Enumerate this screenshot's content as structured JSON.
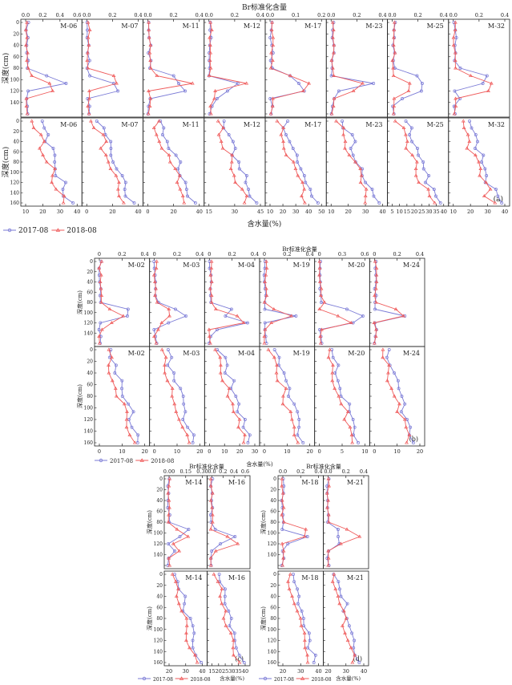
{
  "colors": {
    "s2017": "#7a7ad6",
    "s2018": "#ef5a5a"
  },
  "labels": {
    "top_axis": "Br标准化含量",
    "ylabel": "深度(cm)",
    "xlabel": "含水量(%)",
    "legend": [
      "2017-08",
      "2018-08"
    ],
    "section_a": "(a)",
    "section_b": "(b)",
    "section_c": "(c)",
    "section_d": "(d)"
  },
  "chart_data": [
    {
      "type": "line",
      "title": "(a)",
      "panels": {
        "bromide": [
          {
            "name": "M-06",
            "x_range": [
              0,
              0.6
            ],
            "ticks": [
              "0.0",
              "0.2",
              "0.4",
              "0.6"
            ]
          },
          {
            "name": "M-07",
            "x_range": [
              0,
              0.4
            ],
            "ticks": [
              "0.0",
              "0.2",
              "0.4"
            ]
          },
          {
            "name": "M-11",
            "x_range": [
              0,
              0.4
            ],
            "ticks": [
              "0.0",
              "0.2",
              "0.4"
            ]
          },
          {
            "name": "M-12",
            "x_range": [
              0,
              0.4
            ],
            "ticks": [
              "0.0",
              "0.2",
              "0.4"
            ]
          },
          {
            "name": "M-17",
            "x_range": [
              0,
              0.2
            ],
            "ticks": [
              "0.0",
              "0.1",
              "0.2"
            ]
          },
          {
            "name": "M-23",
            "x_range": [
              0,
              0.4
            ],
            "ticks": [
              "0.0",
              "0.2",
              "0.4"
            ]
          },
          {
            "name": "M-25",
            "x_range": [
              0,
              0.4
            ],
            "ticks": [
              "0.0",
              "0.2",
              "0.4"
            ]
          },
          {
            "name": "M-32",
            "x_range": [
              0,
              0.4
            ],
            "ticks": [
              "0.0",
              "0.2",
              "0.4"
            ]
          }
        ],
        "moisture": [
          {
            "name": "M-06",
            "x_range": [
              10,
              40
            ],
            "ticks": [
              "10",
              "20",
              "30",
              "40"
            ]
          },
          {
            "name": "M-07",
            "x_range": [
              0,
              40
            ],
            "ticks": [
              "0",
              "20",
              "40"
            ]
          },
          {
            "name": "M-11",
            "x_range": [
              0,
              40
            ],
            "ticks": [
              "0",
              "20",
              "40"
            ]
          },
          {
            "name": "M-12",
            "x_range": [
              15,
              45
            ],
            "ticks": [
              "15",
              "30",
              "45"
            ]
          },
          {
            "name": "M-17",
            "x_range": [
              10,
              50
            ],
            "ticks": [
              "10",
              "20",
              "30",
              "40",
              "50"
            ]
          },
          {
            "name": "M-23",
            "x_range": [
              10,
              40
            ],
            "ticks": [
              "10",
              "20",
              "30",
              "40"
            ]
          },
          {
            "name": "M-25",
            "x_range": [
              5,
              40
            ],
            "ticks": [
              "5",
              "10",
              "15",
              "20",
              "25",
              "30",
              "35",
              "40"
            ]
          },
          {
            "name": "M-32",
            "x_range": [
              10,
              40
            ],
            "ticks": [
              "10",
              "20",
              "30",
              "40"
            ]
          }
        ]
      },
      "ylabel": "深度(cm)",
      "y_range": [
        0,
        160
      ]
    },
    {
      "type": "line",
      "title": "(b)",
      "panels": {
        "bromide": [
          {
            "name": "M-02",
            "x_range": [
              0,
              0.4
            ],
            "ticks": [
              "0",
              "0.2",
              "0.4"
            ]
          },
          {
            "name": "M-03",
            "x_range": [
              0,
              0.4
            ],
            "ticks": [
              "0",
              "0.2",
              "0.4"
            ]
          },
          {
            "name": "M-04",
            "x_range": [
              0,
              0.4
            ],
            "ticks": [
              "0",
              "0.2",
              "0.4"
            ]
          },
          {
            "name": "M-19",
            "x_range": [
              0,
              0.4
            ],
            "ticks": [
              "0",
              "0.2",
              "0.4"
            ]
          },
          {
            "name": "M-20",
            "x_range": [
              0,
              0.6
            ],
            "ticks": [
              "0",
              "0.3",
              "0.6"
            ]
          },
          {
            "name": "M-24",
            "x_range": [
              0,
              0.4
            ],
            "ticks": [
              "0",
              "0.2",
              "0.4"
            ]
          }
        ],
        "moisture": [
          {
            "name": "M-02",
            "x_range": [
              0,
              20
            ],
            "ticks": [
              "0",
              "10",
              "20"
            ]
          },
          {
            "name": "M-03",
            "x_range": [
              0,
              20
            ],
            "ticks": [
              "0",
              "10",
              "20"
            ]
          },
          {
            "name": "M-04",
            "x_range": [
              0,
              30
            ],
            "ticks": [
              "0",
              "10",
              "20",
              "30"
            ]
          },
          {
            "name": "M-19",
            "x_range": [
              0,
              20
            ],
            "ticks": [
              "0",
              "10",
              "20"
            ]
          },
          {
            "name": "M-20",
            "x_range": [
              0,
              10
            ],
            "ticks": [
              "0",
              "5",
              "10"
            ]
          },
          {
            "name": "M-24",
            "x_range": [
              0,
              20
            ],
            "ticks": [
              "0",
              "10",
              "20"
            ]
          }
        ]
      },
      "ylabel": "深度(cm)",
      "y_range": [
        0,
        160
      ]
    },
    {
      "type": "line",
      "title": "(c)",
      "panels": {
        "bromide": [
          {
            "name": "M-14",
            "x_range": [
              0,
              0.15
            ],
            "ticks": [
              "0.00",
              "0.15",
              "0.30"
            ]
          },
          {
            "name": "M-16",
            "x_range": [
              0,
              0.6
            ],
            "ticks": [
              "0.0",
              "0.2",
              "0.4",
              "0.6"
            ]
          }
        ],
        "moisture": [
          {
            "name": "M-14",
            "x_range": [
              15,
              40
            ],
            "ticks": [
              "20",
              "30",
              "40"
            ]
          },
          {
            "name": "M-16",
            "x_range": [
              15,
              40
            ],
            "ticks": [
              "15",
              "20",
              "25",
              "30",
              "35",
              "40"
            ]
          }
        ]
      },
      "ylabel": "深度(cm)",
      "y_range": [
        0,
        160
      ]
    },
    {
      "type": "line",
      "title": "(d)",
      "panels": {
        "bromide": [
          {
            "name": "M-18",
            "x_range": [
              0,
              0.4
            ],
            "ticks": [
              "0.0",
              "0.2",
              "0.4"
            ]
          },
          {
            "name": "M-21",
            "x_range": [
              0,
              0.4
            ],
            "ticks": [
              "0.0",
              "0.2",
              "0.4"
            ]
          }
        ],
        "moisture": [
          {
            "name": "M-18",
            "x_range": [
              20,
              40
            ],
            "ticks": [
              "20",
              "30",
              "40"
            ]
          },
          {
            "name": "M-21",
            "x_range": [
              20,
              40
            ],
            "ticks": [
              "20",
              "30",
              "40"
            ]
          }
        ]
      },
      "ylabel": "深度(cm)",
      "y_range": [
        0,
        160
      ]
    }
  ]
}
